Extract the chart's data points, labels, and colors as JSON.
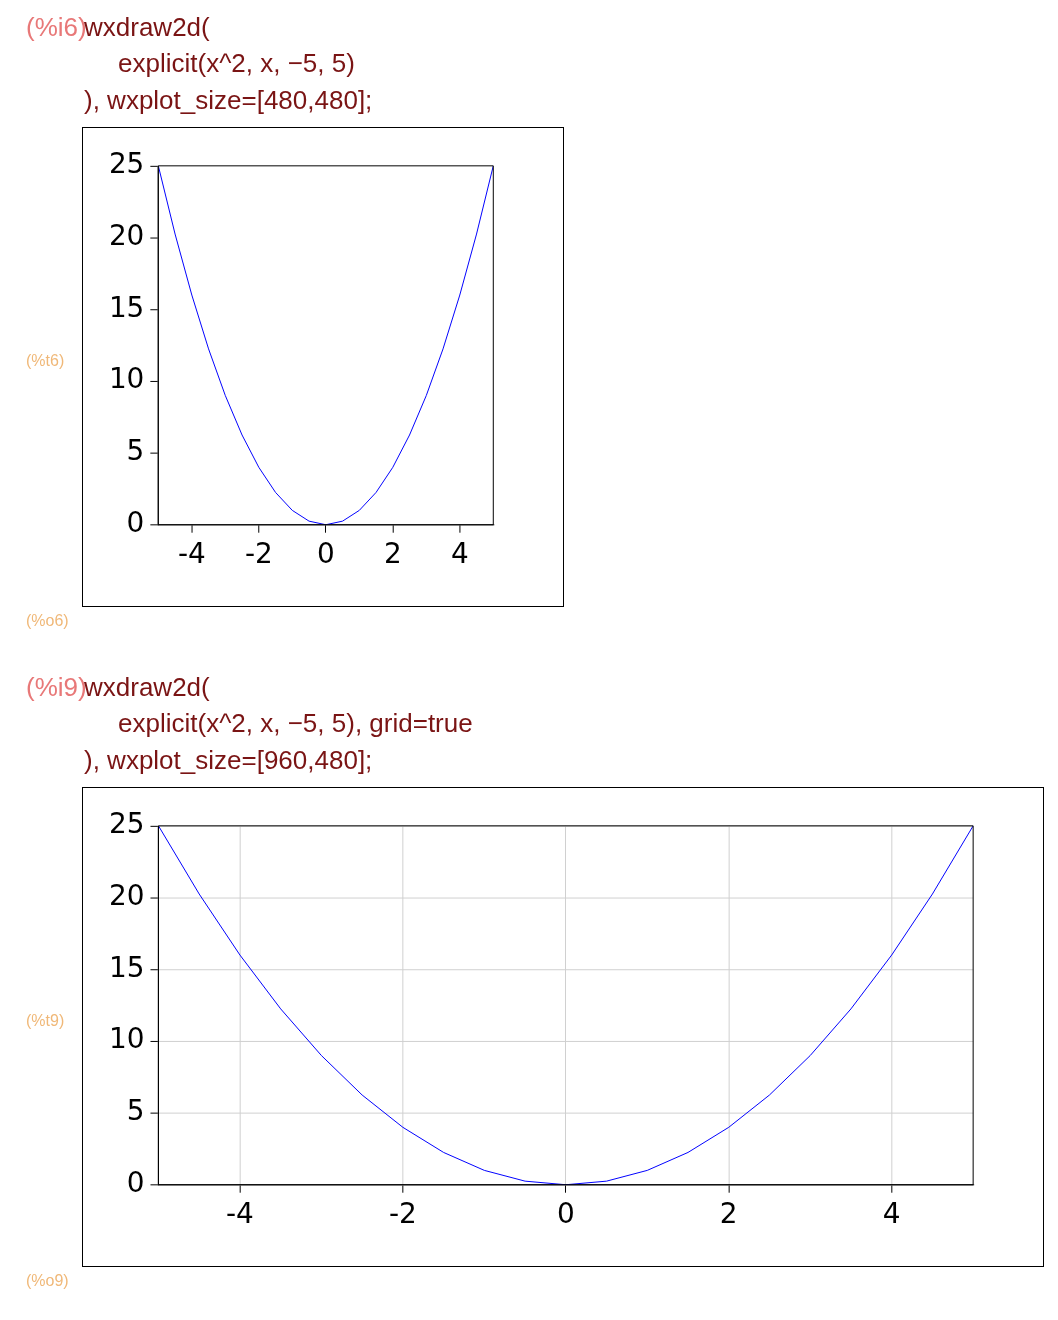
{
  "chart_data": [
    {
      "type": "line",
      "x": [
        -5,
        -4.5,
        -4,
        -3.5,
        -3,
        -2.5,
        -2,
        -1.5,
        -1,
        -0.5,
        0,
        0.5,
        1,
        1.5,
        2,
        2.5,
        3,
        3.5,
        4,
        4.5,
        5
      ],
      "series": [
        {
          "color": "#0000ff",
          "values": [
            25,
            20.25,
            16,
            12.25,
            9,
            6.25,
            4,
            2.25,
            1,
            0.25,
            0,
            0.25,
            1,
            2.25,
            4,
            6.25,
            9,
            12.25,
            16,
            20.25,
            25
          ]
        }
      ],
      "xlim": [
        -5,
        5
      ],
      "ylim": [
        0,
        25
      ],
      "xticks": [
        -4,
        -2,
        0,
        2,
        4
      ],
      "yticks": [
        0,
        5,
        10,
        15,
        20,
        25
      ],
      "grid": false,
      "legend": false,
      "annotations": [
        "(%i6)",
        "wxdraw2d(",
        "explicit(x^2, x, −5, 5)",
        "), wxplot_size=[480,480];",
        "(%t6)",
        "(%o6)"
      ]
    },
    {
      "type": "line",
      "x": [
        -5,
        -4.5,
        -4,
        -3.5,
        -3,
        -2.5,
        -2,
        -1.5,
        -1,
        -0.5,
        0,
        0.5,
        1,
        1.5,
        2,
        2.5,
        3,
        3.5,
        4,
        4.5,
        5
      ],
      "series": [
        {
          "color": "#0000ff",
          "values": [
            25,
            20.25,
            16,
            12.25,
            9,
            6.25,
            4,
            2.25,
            1,
            0.25,
            0,
            0.25,
            1,
            2.25,
            4,
            6.25,
            9,
            12.25,
            16,
            20.25,
            25
          ]
        }
      ],
      "xlim": [
        -5,
        5
      ],
      "ylim": [
        0,
        25
      ],
      "xticks": [
        -4,
        -2,
        0,
        2,
        4
      ],
      "yticks": [
        0,
        5,
        10,
        15,
        20,
        25
      ],
      "grid": true,
      "legend": false,
      "annotations": [
        "(%i9)",
        "wxdraw2d(",
        "explicit(x^2, x, −5, 5), grid=true",
        "), wxplot_size=[960,480];",
        "(%t9)",
        "(%o9)"
      ]
    }
  ]
}
